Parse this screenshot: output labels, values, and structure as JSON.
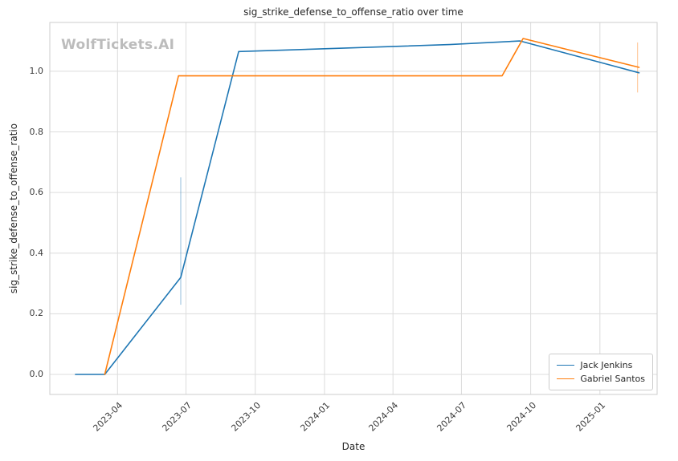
{
  "chart_data": {
    "type": "line",
    "title": "sig_strike_defense_to_offense_ratio over time",
    "xlabel": "Date",
    "ylabel": "sig_strike_defense_to_offense_ratio",
    "watermark": "WolfTickets.AI",
    "grid": true,
    "legend_position": "lower right",
    "x_ticks": [
      "2023-04",
      "2023-07",
      "2023-10",
      "2024-01",
      "2024-04",
      "2024-07",
      "2024-10",
      "2025-01"
    ],
    "y_ticks": [
      0.0,
      0.2,
      0.4,
      0.6,
      0.8,
      1.0
    ],
    "xlim": [
      "2023-01-01",
      "2025-03-18"
    ],
    "ylim": [
      -0.066,
      1.161
    ],
    "series": [
      {
        "name": "Jack Jenkins",
        "color": "#1f77b4",
        "points": [
          [
            "2023-02-04",
            0.0
          ],
          [
            "2023-03-15",
            0.0
          ],
          [
            "2023-06-24",
            0.32
          ],
          [
            "2023-09-09",
            1.065
          ],
          [
            "2023-12-16",
            1.073
          ],
          [
            "2024-06-15",
            1.088
          ],
          [
            "2024-09-17",
            1.1
          ],
          [
            "2025-02-22",
            0.995
          ]
        ]
      },
      {
        "name": "Gabriel Santos",
        "color": "#ff7f0e",
        "points": [
          [
            "2023-03-15",
            0.0
          ],
          [
            "2023-06-21",
            0.985
          ],
          [
            "2024-08-24",
            0.985
          ],
          [
            "2024-09-21",
            1.108
          ],
          [
            "2025-02-22",
            1.013
          ]
        ]
      }
    ],
    "error_bars": [
      {
        "series": "Jack Jenkins",
        "x": "2023-06-24",
        "low": 0.23,
        "high": 0.65
      },
      {
        "series": "Gabriel Santos",
        "x": "2025-02-20",
        "low": 0.93,
        "high": 1.095
      }
    ]
  }
}
